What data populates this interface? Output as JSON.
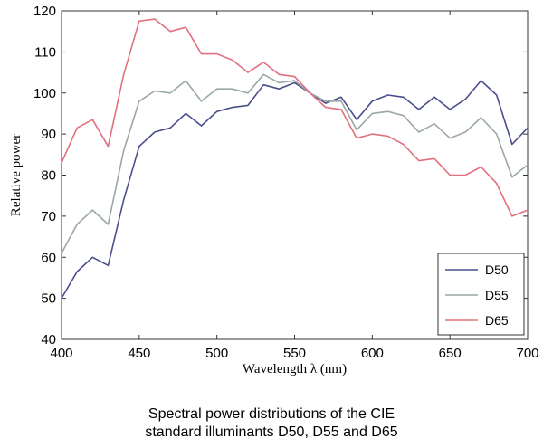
{
  "chart_data": {
    "type": "line",
    "xlabel": "Wavelength λ (nm)",
    "ylabel": "Relative power",
    "xlim": [
      400,
      700
    ],
    "ylim": [
      40,
      120
    ],
    "xticks": [
      400,
      450,
      500,
      550,
      600,
      650,
      700
    ],
    "yticks": [
      40,
      50,
      60,
      70,
      80,
      90,
      100,
      110,
      120
    ],
    "legend_position": "bottom-right",
    "grid": false,
    "x": [
      400,
      410,
      420,
      430,
      440,
      450,
      460,
      470,
      480,
      490,
      500,
      510,
      520,
      530,
      540,
      550,
      560,
      570,
      580,
      590,
      600,
      610,
      620,
      630,
      640,
      650,
      660,
      670,
      680,
      690,
      700
    ],
    "series": [
      {
        "name": "D50",
        "color": "#4a4f8c",
        "values": [
          50,
          56.5,
          60,
          58,
          74,
          87,
          90.5,
          91.5,
          95,
          92,
          95.5,
          96.5,
          97,
          102,
          101,
          102.5,
          100,
          97.5,
          99,
          93.5,
          98,
          99.5,
          99,
          96,
          99,
          96,
          98.5,
          103,
          99.5,
          87.5,
          91.5
        ]
      },
      {
        "name": "D55",
        "color": "#9aa8a6",
        "values": [
          61,
          68,
          71.5,
          68,
          86,
          98,
          100.5,
          100,
          103,
          98,
          101,
          101,
          100,
          104.5,
          102.5,
          103,
          100,
          98,
          98,
          91,
          95,
          95.5,
          94.5,
          90.5,
          92.5,
          89,
          90.5,
          94,
          90,
          79.5,
          82.5
        ]
      },
      {
        "name": "D65",
        "color": "#e2707e",
        "values": [
          83,
          91.5,
          93.5,
          87,
          104.5,
          117.5,
          118,
          115,
          116,
          109.5,
          109.5,
          108,
          105,
          107.5,
          104.5,
          104,
          100,
          96.5,
          96,
          89,
          90,
          89.5,
          87.5,
          83.5,
          84,
          80,
          80,
          82,
          78,
          70,
          71.5
        ]
      }
    ]
  },
  "caption": {
    "line1": "Spectral power distributions of the CIE",
    "line2": "standard illuminants D50, D55 and D65"
  }
}
